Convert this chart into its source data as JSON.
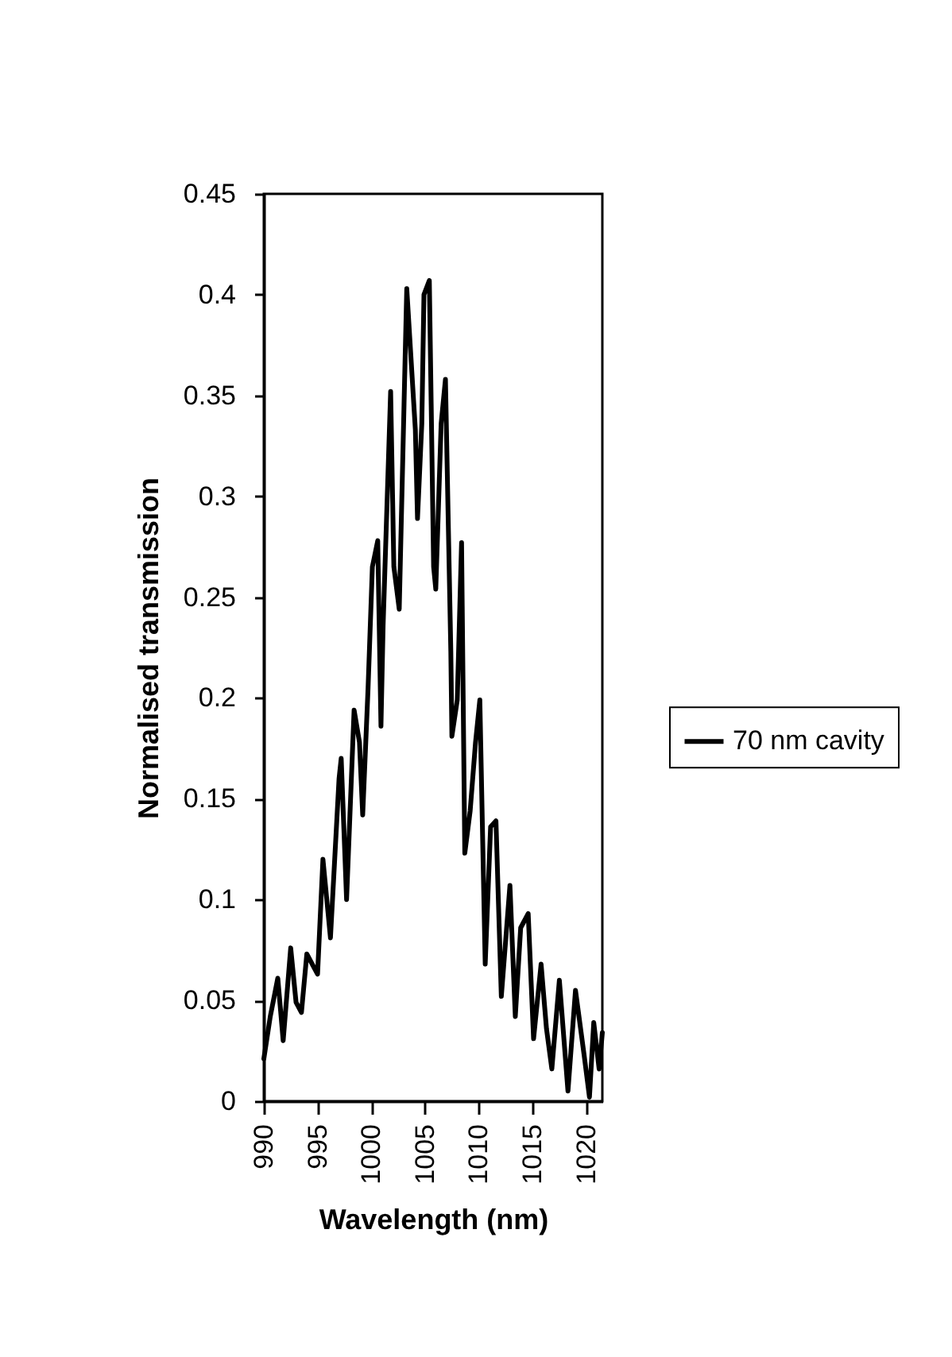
{
  "chart_data": {
    "type": "line",
    "xlabel": "Wavelength   (nm)",
    "ylabel": "Normalised   transmission",
    "x": [
      990,
      990.6,
      991.3,
      991.8,
      992.5,
      993.0,
      993.5,
      994.0,
      995.0,
      995.5,
      996.2,
      997.0,
      997.2,
      997.7,
      998.4,
      998.9,
      999.2,
      999.7,
      1000.1,
      1000.6,
      1000.9,
      1001.1,
      1001.8,
      1002.1,
      1002.6,
      1003.3,
      1004.1,
      1004.3,
      1004.7,
      1004.9,
      1005.4,
      1005.8,
      1006.0,
      1006.5,
      1006.9,
      1007.4,
      1007.5,
      1008.0,
      1008.4,
      1008.7,
      1009.2,
      1009.7,
      1010.1,
      1010.6,
      1011.1,
      1011.6,
      1012.1,
      1012.9,
      1013.4,
      1013.9,
      1014.6,
      1015.1,
      1015.8,
      1016.3,
      1016.8,
      1017.5,
      1018.3,
      1019.0,
      1019.8,
      1020.3,
      1020.7,
      1021.2,
      1021.5
    ],
    "series": [
      {
        "name": "70 nm cavity",
        "color": "#000000",
        "values": [
          0.021,
          0.042,
          0.061,
          0.03,
          0.076,
          0.049,
          0.044,
          0.073,
          0.063,
          0.12,
          0.081,
          0.16,
          0.17,
          0.1,
          0.194,
          0.178,
          0.142,
          0.205,
          0.265,
          0.278,
          0.186,
          0.236,
          0.352,
          0.265,
          0.244,
          0.403,
          0.333,
          0.289,
          0.336,
          0.4,
          0.407,
          0.265,
          0.254,
          0.336,
          0.358,
          0.223,
          0.181,
          0.199,
          0.277,
          0.123,
          0.144,
          0.178,
          0.199,
          0.068,
          0.136,
          0.139,
          0.052,
          0.107,
          0.042,
          0.086,
          0.093,
          0.031,
          0.068,
          0.036,
          0.016,
          0.06,
          0.005,
          0.055,
          0.023,
          0.002,
          0.039,
          0.016,
          0.034
        ]
      }
    ],
    "xlim": [
      990,
      1021.5
    ],
    "xticks": [
      990,
      995,
      1000,
      1005,
      1010,
      1015,
      1020
    ],
    "ylim": [
      0,
      0.45
    ],
    "yticks": [
      0,
      0.05,
      0.1,
      0.15,
      0.2,
      0.25,
      0.3,
      0.35,
      0.4,
      0.45
    ],
    "grid": false,
    "legend": "right",
    "marker": "none",
    "line_style": "solid"
  }
}
